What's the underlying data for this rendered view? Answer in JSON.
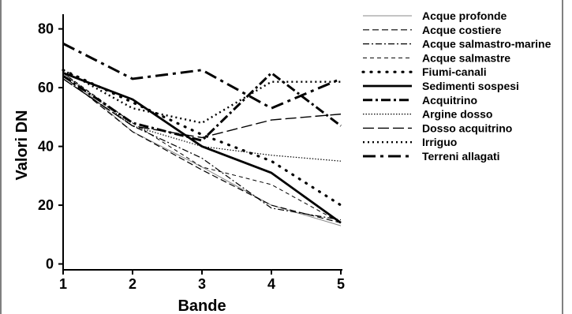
{
  "chart_data": {
    "type": "line",
    "xlabel": "Bande",
    "ylabel": "Valori DN",
    "x": [
      1,
      2,
      3,
      4,
      5
    ],
    "xticks": [
      "1",
      "2",
      "3",
      "4",
      "5"
    ],
    "yticks": [
      "0",
      "20",
      "40",
      "60",
      "80"
    ],
    "xlim": [
      1,
      5
    ],
    "ylim": [
      -2,
      85
    ],
    "grid": false,
    "legend_position": "right",
    "series": [
      {
        "name": "Acque profonde",
        "values": [
          65,
          45,
          33,
          20,
          13
        ],
        "color": "#888888",
        "style": "thin"
      },
      {
        "name": "Acque costiere",
        "values": [
          64,
          45,
          32,
          20,
          14
        ],
        "color": "#000000",
        "style": "dashed"
      },
      {
        "name": "Acque salmastro-marine",
        "values": [
          63,
          47,
          36,
          19,
          15
        ],
        "color": "#000000",
        "style": "dashdot"
      },
      {
        "name": "Acque salmastre",
        "values": [
          65,
          48,
          33,
          27,
          14
        ],
        "color": "#000000",
        "style": "dashed-thin"
      },
      {
        "name": "Fiumi-canali",
        "values": [
          66,
          55,
          44,
          35,
          20
        ],
        "color": "#000000",
        "style": "dotted-bold"
      },
      {
        "name": "Sedimenti sospesi",
        "values": [
          65,
          56,
          40,
          31,
          14
        ],
        "color": "#000000",
        "style": "solid-bold"
      },
      {
        "name": "Acquitrino",
        "values": [
          64,
          48,
          42,
          65,
          47
        ],
        "color": "#000000",
        "style": "dashdot-bold"
      },
      {
        "name": "Argine dosso",
        "values": [
          65,
          47,
          40,
          37,
          35
        ],
        "color": "#000000",
        "style": "fine-dotted"
      },
      {
        "name": "Dosso acquitrino",
        "values": [
          63,
          47,
          43,
          49,
          51
        ],
        "color": "#000000",
        "style": "longdash"
      },
      {
        "name": "Irriguo",
        "values": [
          66,
          53,
          48,
          62,
          62
        ],
        "color": "#000000",
        "style": "dotted"
      },
      {
        "name": "Terreni allagati",
        "values": [
          75,
          63,
          66,
          53,
          63
        ],
        "color": "#000000",
        "style": "longdashdot-bold"
      }
    ]
  }
}
